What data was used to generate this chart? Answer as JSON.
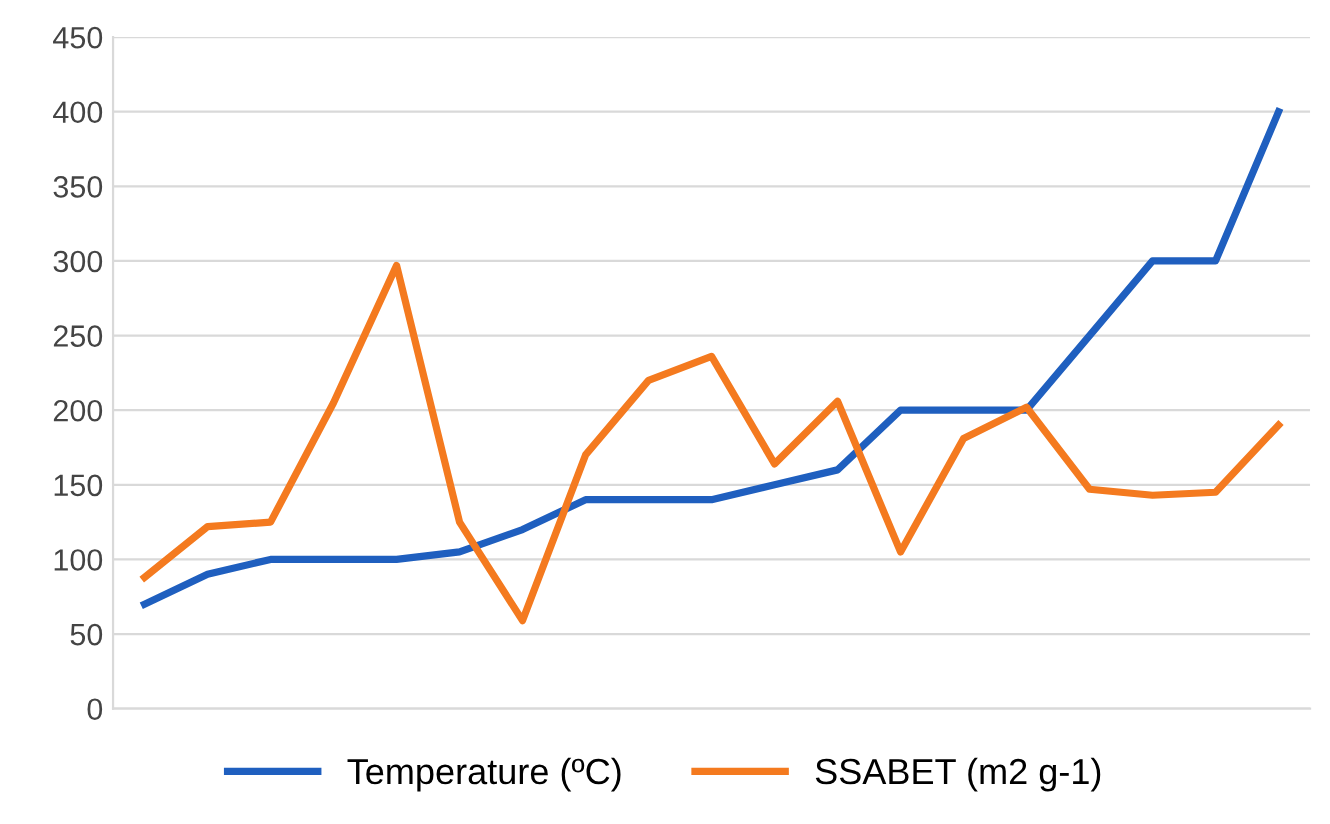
{
  "chart_data": {
    "type": "line",
    "categories": [
      null,
      null,
      null,
      null,
      null,
      null,
      null,
      null,
      null,
      null,
      null,
      null,
      null,
      null,
      null,
      null,
      null,
      null,
      null
    ],
    "series": [
      {
        "name": "Temperature (ºC)",
        "color": "#1f5fbf",
        "values": [
          70,
          90,
          100,
          100,
          100,
          105,
          120,
          140,
          140,
          140,
          150,
          160,
          200,
          200,
          200,
          250,
          300,
          300,
          400
        ]
      },
      {
        "name": "SSABET (m2 g-1)",
        "color": "#f47a1f",
        "values": [
          88,
          122,
          125,
          205,
          297,
          125,
          59,
          170,
          220,
          236,
          164,
          206,
          105,
          181,
          202,
          147,
          143,
          145,
          190
        ]
      }
    ],
    "ylim": [
      0,
      450
    ],
    "yticks": [
      0,
      50,
      100,
      150,
      200,
      250,
      300,
      350,
      400,
      450
    ],
    "grid": "y",
    "legend": "bottom",
    "marker": "none",
    "line_style": "solid"
  }
}
